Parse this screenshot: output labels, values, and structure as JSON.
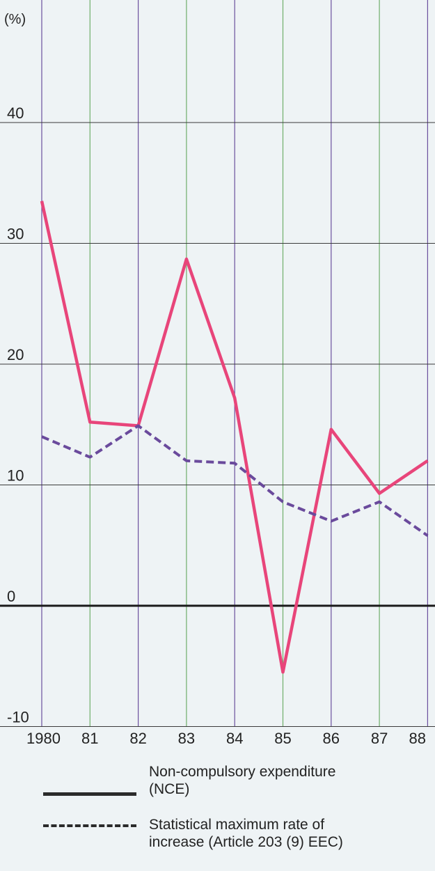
{
  "chart_data": {
    "type": "line",
    "title": "",
    "ylabel": "(%)",
    "xlabel": "",
    "ylim": [
      -10,
      50
    ],
    "xlim": [
      "1980",
      "88"
    ],
    "grid": true,
    "yticks": [
      {
        "value": 40,
        "label": "40"
      },
      {
        "value": 30,
        "label": "30"
      },
      {
        "value": 20,
        "label": "20"
      },
      {
        "value": 10,
        "label": "10"
      },
      {
        "value": 0,
        "label": "0"
      },
      {
        "value": -10,
        "label": "-10"
      }
    ],
    "categories": [
      "1980",
      "81",
      "82",
      "83",
      "84",
      "85",
      "86",
      "87",
      "88"
    ],
    "series": [
      {
        "name": "Non-compulsory expenditure (NCE)",
        "style": "solid",
        "color": "#e8457a",
        "values": [
          33.5,
          15.2,
          14.9,
          28.7,
          17.2,
          -5.5,
          14.6,
          9.3,
          12.0
        ]
      },
      {
        "name": "Statistical maximum rate of increase (Article 203 (9) EEC)",
        "style": "dashed",
        "color": "#6a4a9c",
        "values": [
          14.0,
          12.3,
          14.9,
          12.0,
          11.8,
          8.6,
          7.0,
          8.6,
          5.8
        ]
      }
    ]
  },
  "colors": {
    "background": "#eef3f5",
    "grid_vertical_green": "#6fae6a",
    "grid_vertical_purple": "#6a4f9d",
    "grid_horizontal": "#3a3a3a",
    "zero_line": "#1a1a1a",
    "nce_line": "#e8457a",
    "stat_line": "#6a4a9c"
  },
  "legend": {
    "nce_label": "Non-compulsory expenditure\n(NCE)",
    "stat_label": "Statistical maximum rate of\nincrease (Article 203 (9) EEC)"
  }
}
